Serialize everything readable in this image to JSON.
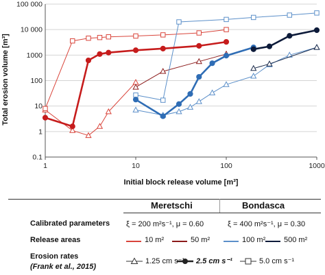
{
  "chart_data": {
    "type": "line",
    "xscale": "log",
    "yscale": "log",
    "xlim": [
      1,
      1000
    ],
    "ylim": [
      0.1,
      100000
    ],
    "xlabel": "Initial block release volume [m³]",
    "ylabel": "Total erosion volume [m³]",
    "x_ticks": [
      "1",
      "10",
      "100",
      "1000"
    ],
    "y_ticks": [
      "0.1",
      "1",
      "10",
      "100",
      "1000",
      "10 000",
      "100 000"
    ],
    "grid": "horizontal",
    "series": [
      {
        "name": "Meretschi 10 m², 1.25 cm s⁻¹",
        "color": "#d9443a",
        "marker": "triangle",
        "width": 1,
        "x": [
          1,
          2,
          3,
          4,
          5,
          10
        ],
        "y": [
          7,
          1.1,
          0.7,
          1.6,
          6,
          85
        ]
      },
      {
        "name": "Meretschi 10 m², 2.5 cm s⁻¹",
        "color": "#c61c1c",
        "marker": "circle",
        "width": 2.6,
        "x": [
          1,
          2,
          3,
          4,
          5,
          10,
          20,
          50,
          100
        ],
        "y": [
          3.5,
          1.6,
          620,
          1100,
          1250,
          1550,
          1800,
          2300,
          3300
        ]
      },
      {
        "name": "Meretschi 10 m², 5.0 cm s⁻¹",
        "color": "#d9443a",
        "marker": "square",
        "width": 1,
        "x": [
          1,
          2,
          3,
          4,
          5,
          10,
          20,
          50,
          100
        ],
        "y": [
          8,
          3600,
          4600,
          4900,
          5200,
          5600,
          6200,
          7400,
          10000
        ]
      },
      {
        "name": "Meretschi 50 m², 1.25 cm s⁻¹",
        "color": "#8b1a1a",
        "marker": "triangle",
        "width": 1,
        "x": [
          10,
          20,
          50,
          100
        ],
        "y": [
          55,
          230,
          560,
          1100
        ]
      },
      {
        "name": "Bondasca 100 m², 1.25 cm s⁻¹",
        "color": "#5b8fc9",
        "marker": "triangle",
        "width": 1,
        "x": [
          10,
          20,
          30,
          40,
          50,
          70,
          100,
          200,
          300,
          500,
          1000
        ],
        "y": [
          7,
          4.4,
          6,
          9,
          15,
          33,
          70,
          150,
          420,
          1000,
          2000
        ]
      },
      {
        "name": "Bondasca 100 m², 2.5 cm s⁻¹",
        "color": "#2f6db5",
        "marker": "circle",
        "width": 2.6,
        "x": [
          10,
          20,
          30,
          40,
          50,
          70,
          100,
          200
        ],
        "y": [
          18,
          4,
          12,
          30,
          140,
          480,
          950,
          2000
        ]
      },
      {
        "name": "Bondasca 100 m², 5.0 cm s⁻¹",
        "color": "#5b8fc9",
        "marker": "square",
        "width": 1,
        "x": [
          10,
          20,
          30,
          100,
          200,
          500,
          1000
        ],
        "y": [
          27,
          17,
          20000,
          25000,
          30000,
          37000,
          45000
        ]
      },
      {
        "name": "Bondasca 500 m², 1.25 cm s⁻¹",
        "color": "#1a2a4a",
        "marker": "triangle",
        "width": 1,
        "x": [
          200,
          300,
          1000
        ],
        "y": [
          300,
          450,
          2000
        ]
      },
      {
        "name": "Bondasca 500 m², 2.5 cm s⁻¹",
        "color": "#0d1b3a",
        "marker": "circle",
        "width": 2.6,
        "x": [
          200,
          300,
          500,
          1000
        ],
        "y": [
          1700,
          2200,
          5700,
          9500
        ]
      }
    ]
  },
  "legend_table": {
    "col_meretschi": "Meretschi",
    "col_bondasca": "Bondasca",
    "row_params": "Calibrated parameters",
    "params_meretschi": "ξ = 200 m²s⁻¹, μ = 0.60",
    "params_bondasca": "ξ = 400 m²s⁻¹, μ = 0.30",
    "row_release": "Release areas",
    "release": [
      {
        "label": "10 m²",
        "color": "#d9443a"
      },
      {
        "label": "50 m²",
        "color": "#8b1a1a"
      },
      {
        "label": "100 m²",
        "color": "#5b8fc9"
      },
      {
        "label": "500 m²",
        "color": "#0d1b3a"
      }
    ],
    "row_rates": "Erosion rates",
    "row_rates_ref": "(Frank et al., 2015)",
    "rates": [
      {
        "label": "1.25 cm s⁻¹",
        "marker": "triangle-icon"
      },
      {
        "label": "2.5 cm s⁻¹",
        "marker": "circle-icon"
      },
      {
        "label": "5.0 cm s⁻¹",
        "marker": "square-icon"
      }
    ]
  }
}
